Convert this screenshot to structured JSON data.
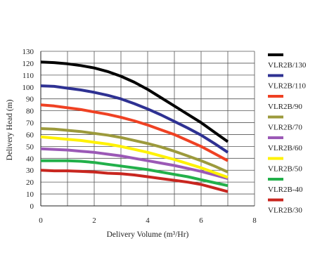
{
  "chart_data": {
    "type": "line",
    "xlabel": "Delivery Volume (m³/Hr)",
    "ylabel": "Delivery Head (m)",
    "xlim": [
      0,
      8
    ],
    "ylim": [
      0,
      130
    ],
    "xticks": [
      0,
      2,
      4,
      6,
      8
    ],
    "yticks": [
      0,
      10,
      20,
      30,
      40,
      50,
      60,
      70,
      80,
      90,
      100,
      110,
      120,
      130
    ],
    "x_minor_step": 1,
    "grid": true,
    "legend_position": "right",
    "series": [
      {
        "name": "VLR2B/130",
        "color": "#000000",
        "x": [
          0,
          0.5,
          1,
          1.5,
          2,
          2.5,
          3,
          3.5,
          4,
          4.5,
          5,
          5.5,
          6,
          6.5,
          7
        ],
        "y": [
          121,
          120.5,
          119.5,
          118,
          116,
          113,
          109,
          104,
          98,
          91,
          84,
          77,
          70,
          62,
          54
        ]
      },
      {
        "name": "VLR2B/110",
        "color": "#2e3192",
        "x": [
          0,
          0.5,
          1,
          1.5,
          2,
          2.5,
          3,
          3.5,
          4,
          4.5,
          5,
          5.5,
          6,
          6.5,
          7
        ],
        "y": [
          101,
          100.5,
          99,
          97.5,
          95.5,
          93,
          90,
          86,
          81.5,
          76.5,
          71,
          65.5,
          59.5,
          52.5,
          45
        ]
      },
      {
        "name": "VLR2B/90",
        "color": "#ef4123",
        "x": [
          0,
          0.5,
          1,
          1.5,
          2,
          2.5,
          3,
          3.5,
          4,
          4.5,
          5,
          5.5,
          6,
          6.5,
          7
        ],
        "y": [
          85,
          84,
          82.5,
          81,
          79,
          77,
          74.5,
          71.5,
          68,
          64,
          60,
          55,
          50,
          44,
          38
        ]
      },
      {
        "name": "VLR2B/70",
        "color": "#9c9a3c",
        "x": [
          0,
          0.5,
          1,
          1.5,
          2,
          2.5,
          3,
          3.5,
          4,
          4.5,
          5,
          5.5,
          6,
          6.5,
          7
        ],
        "y": [
          65,
          64.5,
          63.5,
          62.5,
          61,
          59.5,
          57.5,
          55,
          52.5,
          49.5,
          46,
          42,
          38,
          33.5,
          28.5
        ]
      },
      {
        "name": "VLR2B/60",
        "color": "#9b59b6",
        "x": [
          0,
          0.5,
          1,
          1.5,
          2,
          2.5,
          3,
          3.5,
          4,
          4.5,
          5,
          5.5,
          6,
          6.5,
          7
        ],
        "y": [
          48,
          47.5,
          47,
          46,
          45,
          43.5,
          42,
          40,
          38,
          36,
          34,
          31.5,
          29,
          26,
          23
        ]
      },
      {
        "name": "VLR2B/50",
        "color": "#fff200",
        "x": [
          0,
          0.5,
          1,
          1.5,
          2,
          2.5,
          3,
          3.5,
          4,
          4.5,
          5,
          5.5,
          6,
          6.5,
          7
        ],
        "y": [
          58,
          57,
          56,
          55,
          53.5,
          52,
          50,
          47.5,
          45,
          42,
          39,
          35.5,
          32,
          28,
          24
        ]
      },
      {
        "name": "VLR2B-40",
        "color": "#22b04a",
        "x": [
          0,
          0.5,
          1,
          1.5,
          2,
          2.5,
          3,
          3.5,
          4,
          4.5,
          5,
          5.5,
          6,
          6.5,
          7
        ],
        "y": [
          38,
          38,
          38,
          37.5,
          36.5,
          35,
          33.5,
          32,
          30.5,
          28.5,
          26.5,
          24.5,
          22,
          19.5,
          17
        ]
      },
      {
        "name": "VLR2B/30",
        "color": "#c8261f",
        "x": [
          0,
          0.5,
          1,
          1.5,
          2,
          2.5,
          3,
          3.5,
          4,
          4.5,
          5,
          5.5,
          6,
          6.5,
          7
        ],
        "y": [
          30,
          29.5,
          29.5,
          29,
          28.5,
          27.5,
          27,
          26,
          24.5,
          23,
          21.5,
          20,
          18,
          15,
          12
        ]
      }
    ]
  }
}
